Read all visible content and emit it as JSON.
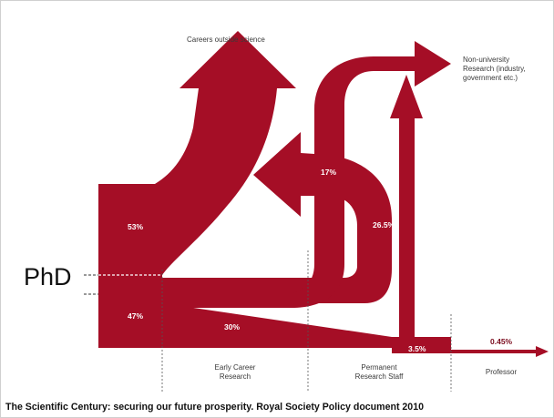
{
  "diagram": {
    "labels": {
      "careers_outside": "Careers outside science",
      "non_university_1": "Non-university",
      "non_university_2": "Research (industry,",
      "non_university_3": "government etc.)",
      "phd": "PhD",
      "early_career_1": "Early Career",
      "early_career_2": "Research",
      "permanent_1": "Permanent",
      "permanent_2": "Research Staff",
      "professor": "Professor"
    },
    "percentages": {
      "p53": "53%",
      "p47": "47%",
      "p17": "17%",
      "p26_5": "26.5%",
      "p30": "30%",
      "p3_5": "3.5%",
      "p0_45": "0.45%"
    },
    "caption": "The Scientific Century:  securing our future prosperity. Royal Society Policy document 2010",
    "colors": {
      "flow": "#a50e26",
      "frame": "#d0d0d0"
    }
  }
}
